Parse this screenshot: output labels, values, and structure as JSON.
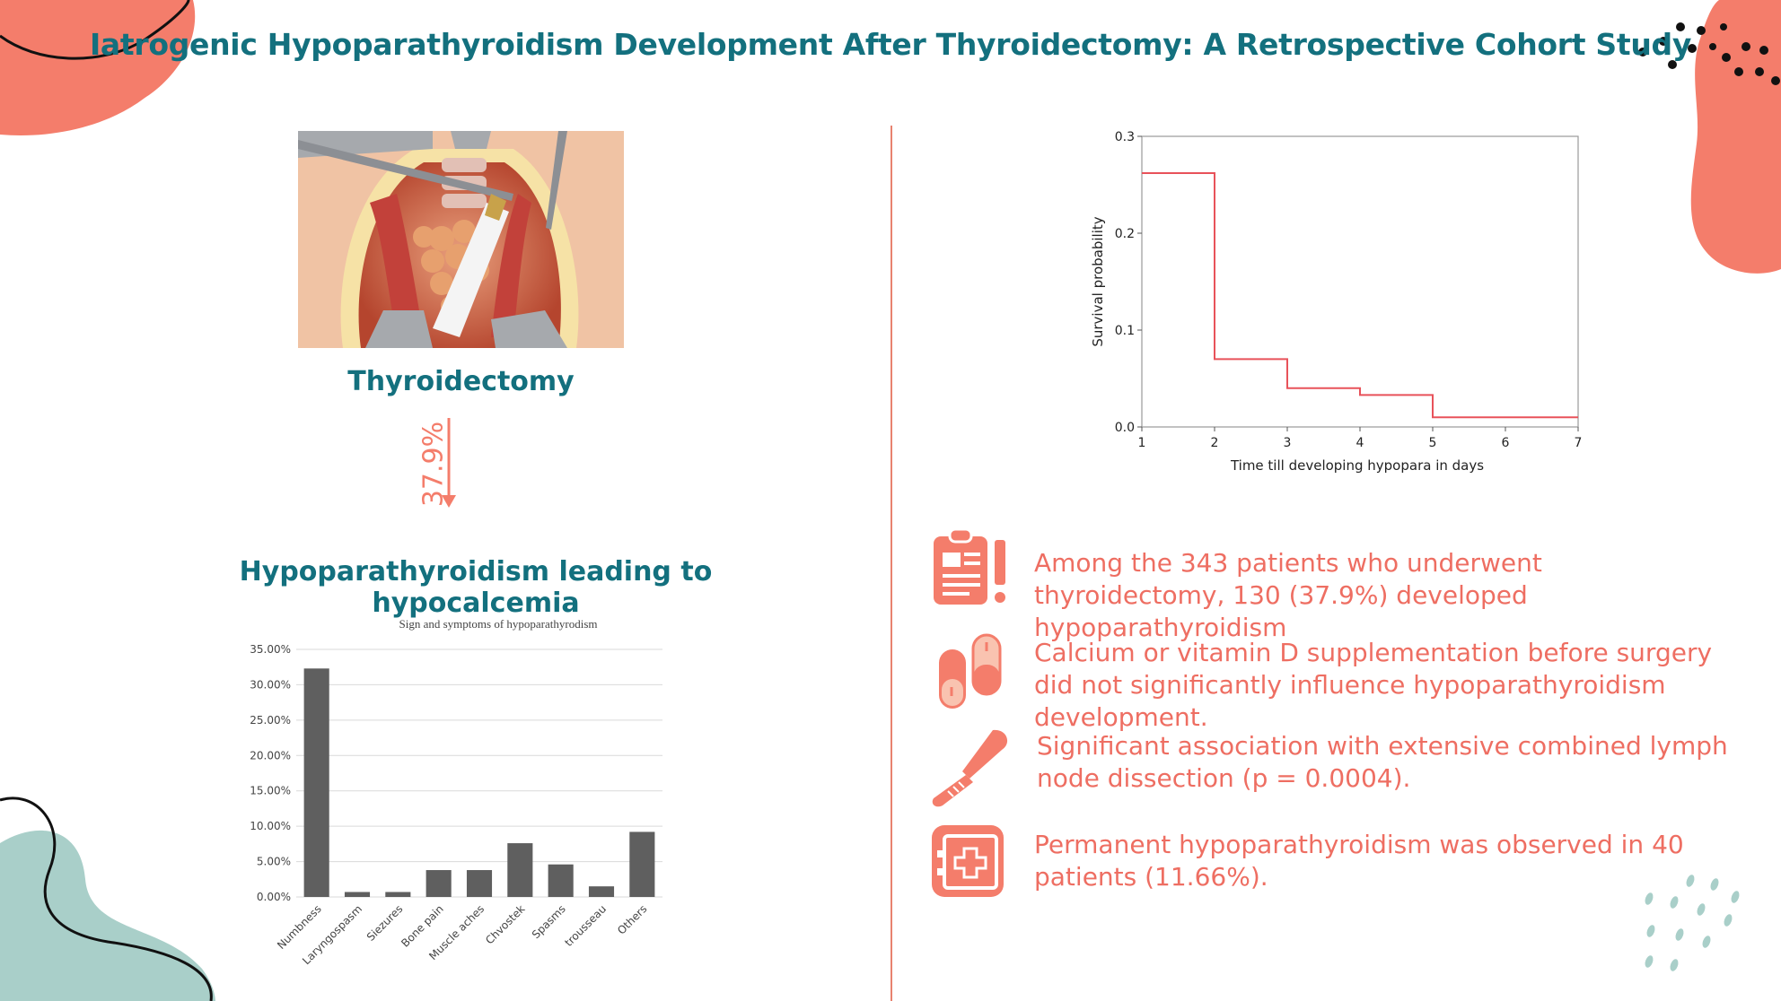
{
  "title": "Iatrogenic Hypoparathyroidism Development After Thyroidectomy: A Retrospective Cohort Study",
  "colors": {
    "teal": "#13707e",
    "coral": "#ee6e62",
    "salmon": "#f47d6b",
    "bar": "#5f5f5f",
    "line": "#e8525a",
    "mint": "#a9cfc9"
  },
  "left": {
    "procedure_label": "Thyroidectomy",
    "arrow_percent": "37.9%",
    "outcome_label": "Hypoparathyroidism leading to hypocalcemia"
  },
  "chart_data": [
    {
      "type": "bar",
      "title": "Sign and symptoms of hypoparathyrodism",
      "categories": [
        "Numbness",
        "Laryngospasm",
        "Siezures",
        "Bone pain",
        "Muscle aches",
        "Chvostek",
        "Spasms",
        "trousseau",
        "Others"
      ],
      "values": [
        32.3,
        0.7,
        0.7,
        3.8,
        3.8,
        7.6,
        4.6,
        1.5,
        9.2
      ],
      "ylim": [
        0,
        35
      ],
      "yticks": [
        "0.00%",
        "5.00%",
        "10.00%",
        "15.00%",
        "20.00%",
        "25.00%",
        "30.00%",
        "35.00%"
      ],
      "xlabel": "",
      "ylabel": ""
    },
    {
      "type": "line",
      "step": true,
      "title": "",
      "xlabel": "Time till developing hypopara in days",
      "ylabel": "Survival probability",
      "xlim": [
        1,
        7
      ],
      "ylim": [
        0,
        0.3
      ],
      "xticks": [
        "1",
        "2",
        "3",
        "4",
        "5",
        "6",
        "7"
      ],
      "yticks": [
        "0.0",
        "0.1",
        "0.2",
        "0.3"
      ],
      "series": [
        {
          "name": "survival",
          "x": [
            1,
            2,
            3,
            4,
            5,
            7
          ],
          "y": [
            0.262,
            0.07,
            0.04,
            0.033,
            0.01,
            0.01
          ]
        }
      ]
    }
  ],
  "findings": [
    {
      "icon": "clipboard-icon",
      "text": "Among the 343 patients who underwent thyroidectomy, 130 (37.9%) developed hypoparathyroidism"
    },
    {
      "icon": "pills-icon",
      "text": "Calcium or vitamin D supplementation before surgery did not significantly influence hypoparathyroidism development."
    },
    {
      "icon": "scalpel-icon",
      "text": "Significant association with extensive combined lymph node dissection (p = 0.0004)."
    },
    {
      "icon": "medical-kit-icon",
      "text": "Permanent hypoparathyroidism was observed in 40 patients (11.66%)."
    }
  ]
}
